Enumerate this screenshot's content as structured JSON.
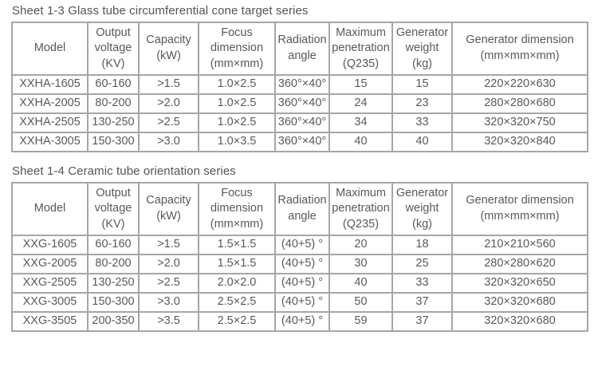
{
  "colors": {
    "border": "#a6a6a6",
    "text": "#595959",
    "background": "#ffffff"
  },
  "tables": [
    {
      "title": "Sheet 1-3 Glass tube circumferential cone target series",
      "headers": [
        "Model",
        "Output\nvoltage\n(KV)",
        "Capacity\n(kW)",
        "Focus\ndimension\n(mm×mm)",
        "Radiation\nangle",
        "Maximum\npenetration\n(Q235)",
        "Generator\nweight\n(kg)",
        "Generator dimension\n(mm×mm×mm)"
      ],
      "rows": [
        [
          "XXHA-1605",
          "60-160",
          ">1.5",
          "1.0×2.5",
          "360°×40°",
          "15",
          "15",
          "220×220×630"
        ],
        [
          "XXHA-2005",
          "80-200",
          ">2.0",
          "1.0×2.5",
          "360°×40°",
          "24",
          "23",
          "280×280×680"
        ],
        [
          "XXHA-2505",
          "130-250",
          ">2.5",
          "1.0×2.5",
          "360°×40°",
          "34",
          "33",
          "320×320×750"
        ],
        [
          "XXHA-3005",
          "150-300",
          ">3.0",
          "1.0×3.5",
          "360°×40°",
          "40",
          "40",
          "320×320×840"
        ]
      ]
    },
    {
      "title": "Sheet 1-4 Ceramic tube orientation series",
      "headers": [
        "Model",
        "Output\nvoltage\n(KV)",
        "Capacity\n(kW)",
        "Focus\ndimension\n(mm×mm)",
        "Radiation\nangle",
        "Maximum\npenetration\n(Q235)",
        "Generator\nweight\n(kg)",
        "Generator dimension\n(mm×mm×mm)"
      ],
      "rows": [
        [
          "XXG-1605",
          "60-160",
          ">1.5",
          "1.5×1.5",
          "(40+5) °",
          "20",
          "18",
          "210×210×560"
        ],
        [
          "XXG-2005",
          "80-200",
          ">2.0",
          "1.5×1.5",
          "(40+5) °",
          "30",
          "25",
          "280×280×620"
        ],
        [
          "XXG-2505",
          "130-250",
          ">2.5",
          "2.0×2.0",
          "(40+5) °",
          "40",
          "33",
          "320×320×650"
        ],
        [
          "XXG-3005",
          "150-300",
          ">3.0",
          "2.5×2.5",
          "(40+5) °",
          "50",
          "37",
          "320×320×680"
        ],
        [
          "XXG-3505",
          "200-350",
          ">3.5",
          "2.5×2.5",
          "(40+5) °",
          "59",
          "37",
          "320×320×680"
        ]
      ]
    }
  ]
}
